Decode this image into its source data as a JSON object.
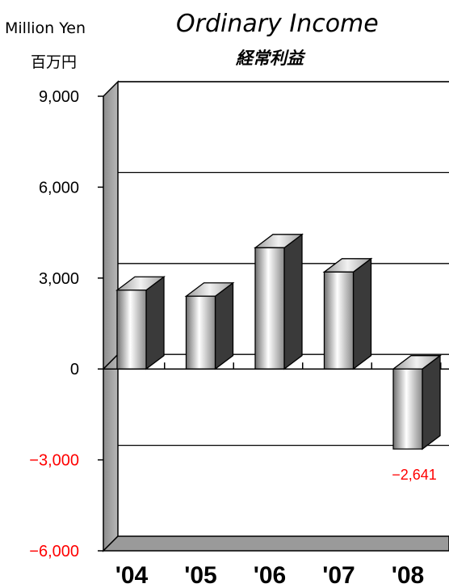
{
  "chart_data": {
    "type": "bar",
    "title": "Ordinary Income",
    "subtitle": "経常利益",
    "unit_en": "Million Yen",
    "unit_jp": "百万円",
    "categories": [
      "'04",
      "'05",
      "'06",
      "'07",
      "'08"
    ],
    "values": [
      2600,
      2400,
      4000,
      3200,
      -2641
    ],
    "ylim": [
      -6000,
      9000
    ],
    "yticks": [
      "9,000",
      "6,000",
      "3,000",
      "0",
      "−3,000",
      "−6,000"
    ],
    "ytick_values": [
      9000,
      6000,
      3000,
      0,
      -3000,
      -6000
    ],
    "data_labels": [
      {
        "category": "'08",
        "text": "−2,641"
      }
    ],
    "grid": true,
    "colors": {
      "negative": "#ff0000",
      "bar_side": "#3a3a3a",
      "wall": "#9a9a9a"
    }
  }
}
